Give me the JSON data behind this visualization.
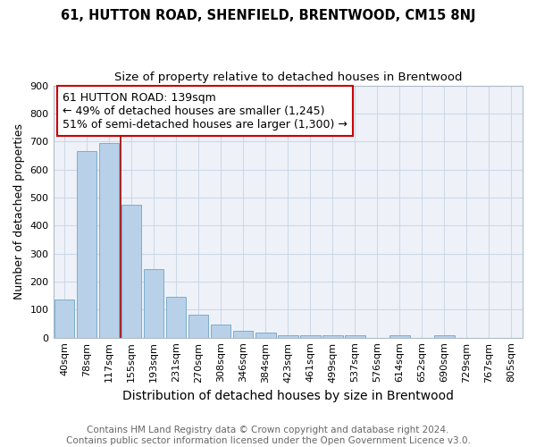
{
  "title1": "61, HUTTON ROAD, SHENFIELD, BRENTWOOD, CM15 8NJ",
  "title2": "Size of property relative to detached houses in Brentwood",
  "xlabel": "Distribution of detached houses by size in Brentwood",
  "ylabel": "Number of detached properties",
  "footnote": "Contains HM Land Registry data © Crown copyright and database right 2024.\nContains public sector information licensed under the Open Government Licence v3.0.",
  "bar_labels": [
    "40sqm",
    "78sqm",
    "117sqm",
    "155sqm",
    "193sqm",
    "231sqm",
    "270sqm",
    "308sqm",
    "346sqm",
    "384sqm",
    "423sqm",
    "461sqm",
    "499sqm",
    "537sqm",
    "576sqm",
    "614sqm",
    "652sqm",
    "690sqm",
    "729sqm",
    "767sqm",
    "805sqm"
  ],
  "bar_values": [
    135,
    665,
    695,
    475,
    245,
    145,
    83,
    48,
    25,
    18,
    10,
    9,
    9,
    7,
    0,
    8,
    0,
    8,
    0,
    0,
    0
  ],
  "bar_color": "#b8d0e8",
  "bar_edge_color": "#7aaecd",
  "grid_color": "#ccd8e8",
  "bg_color": "#eef2f8",
  "ylim": [
    0,
    900
  ],
  "yticks": [
    0,
    100,
    200,
    300,
    400,
    500,
    600,
    700,
    800,
    900
  ],
  "property_label": "61 HUTTON ROAD: 139sqm",
  "annotation_line1": "← 49% of detached houses are smaller (1,245)",
  "annotation_line2": "51% of semi-detached houses are larger (1,300) →",
  "vline_x_index": 3,
  "vline_color": "#990000",
  "annotation_box_color": "#ffffff",
  "annotation_box_edge": "#cc0000",
  "title1_fontsize": 10.5,
  "title2_fontsize": 9.5,
  "xlabel_fontsize": 10,
  "ylabel_fontsize": 9,
  "tick_fontsize": 8,
  "annotation_fontsize": 9,
  "footnote_fontsize": 7.5
}
